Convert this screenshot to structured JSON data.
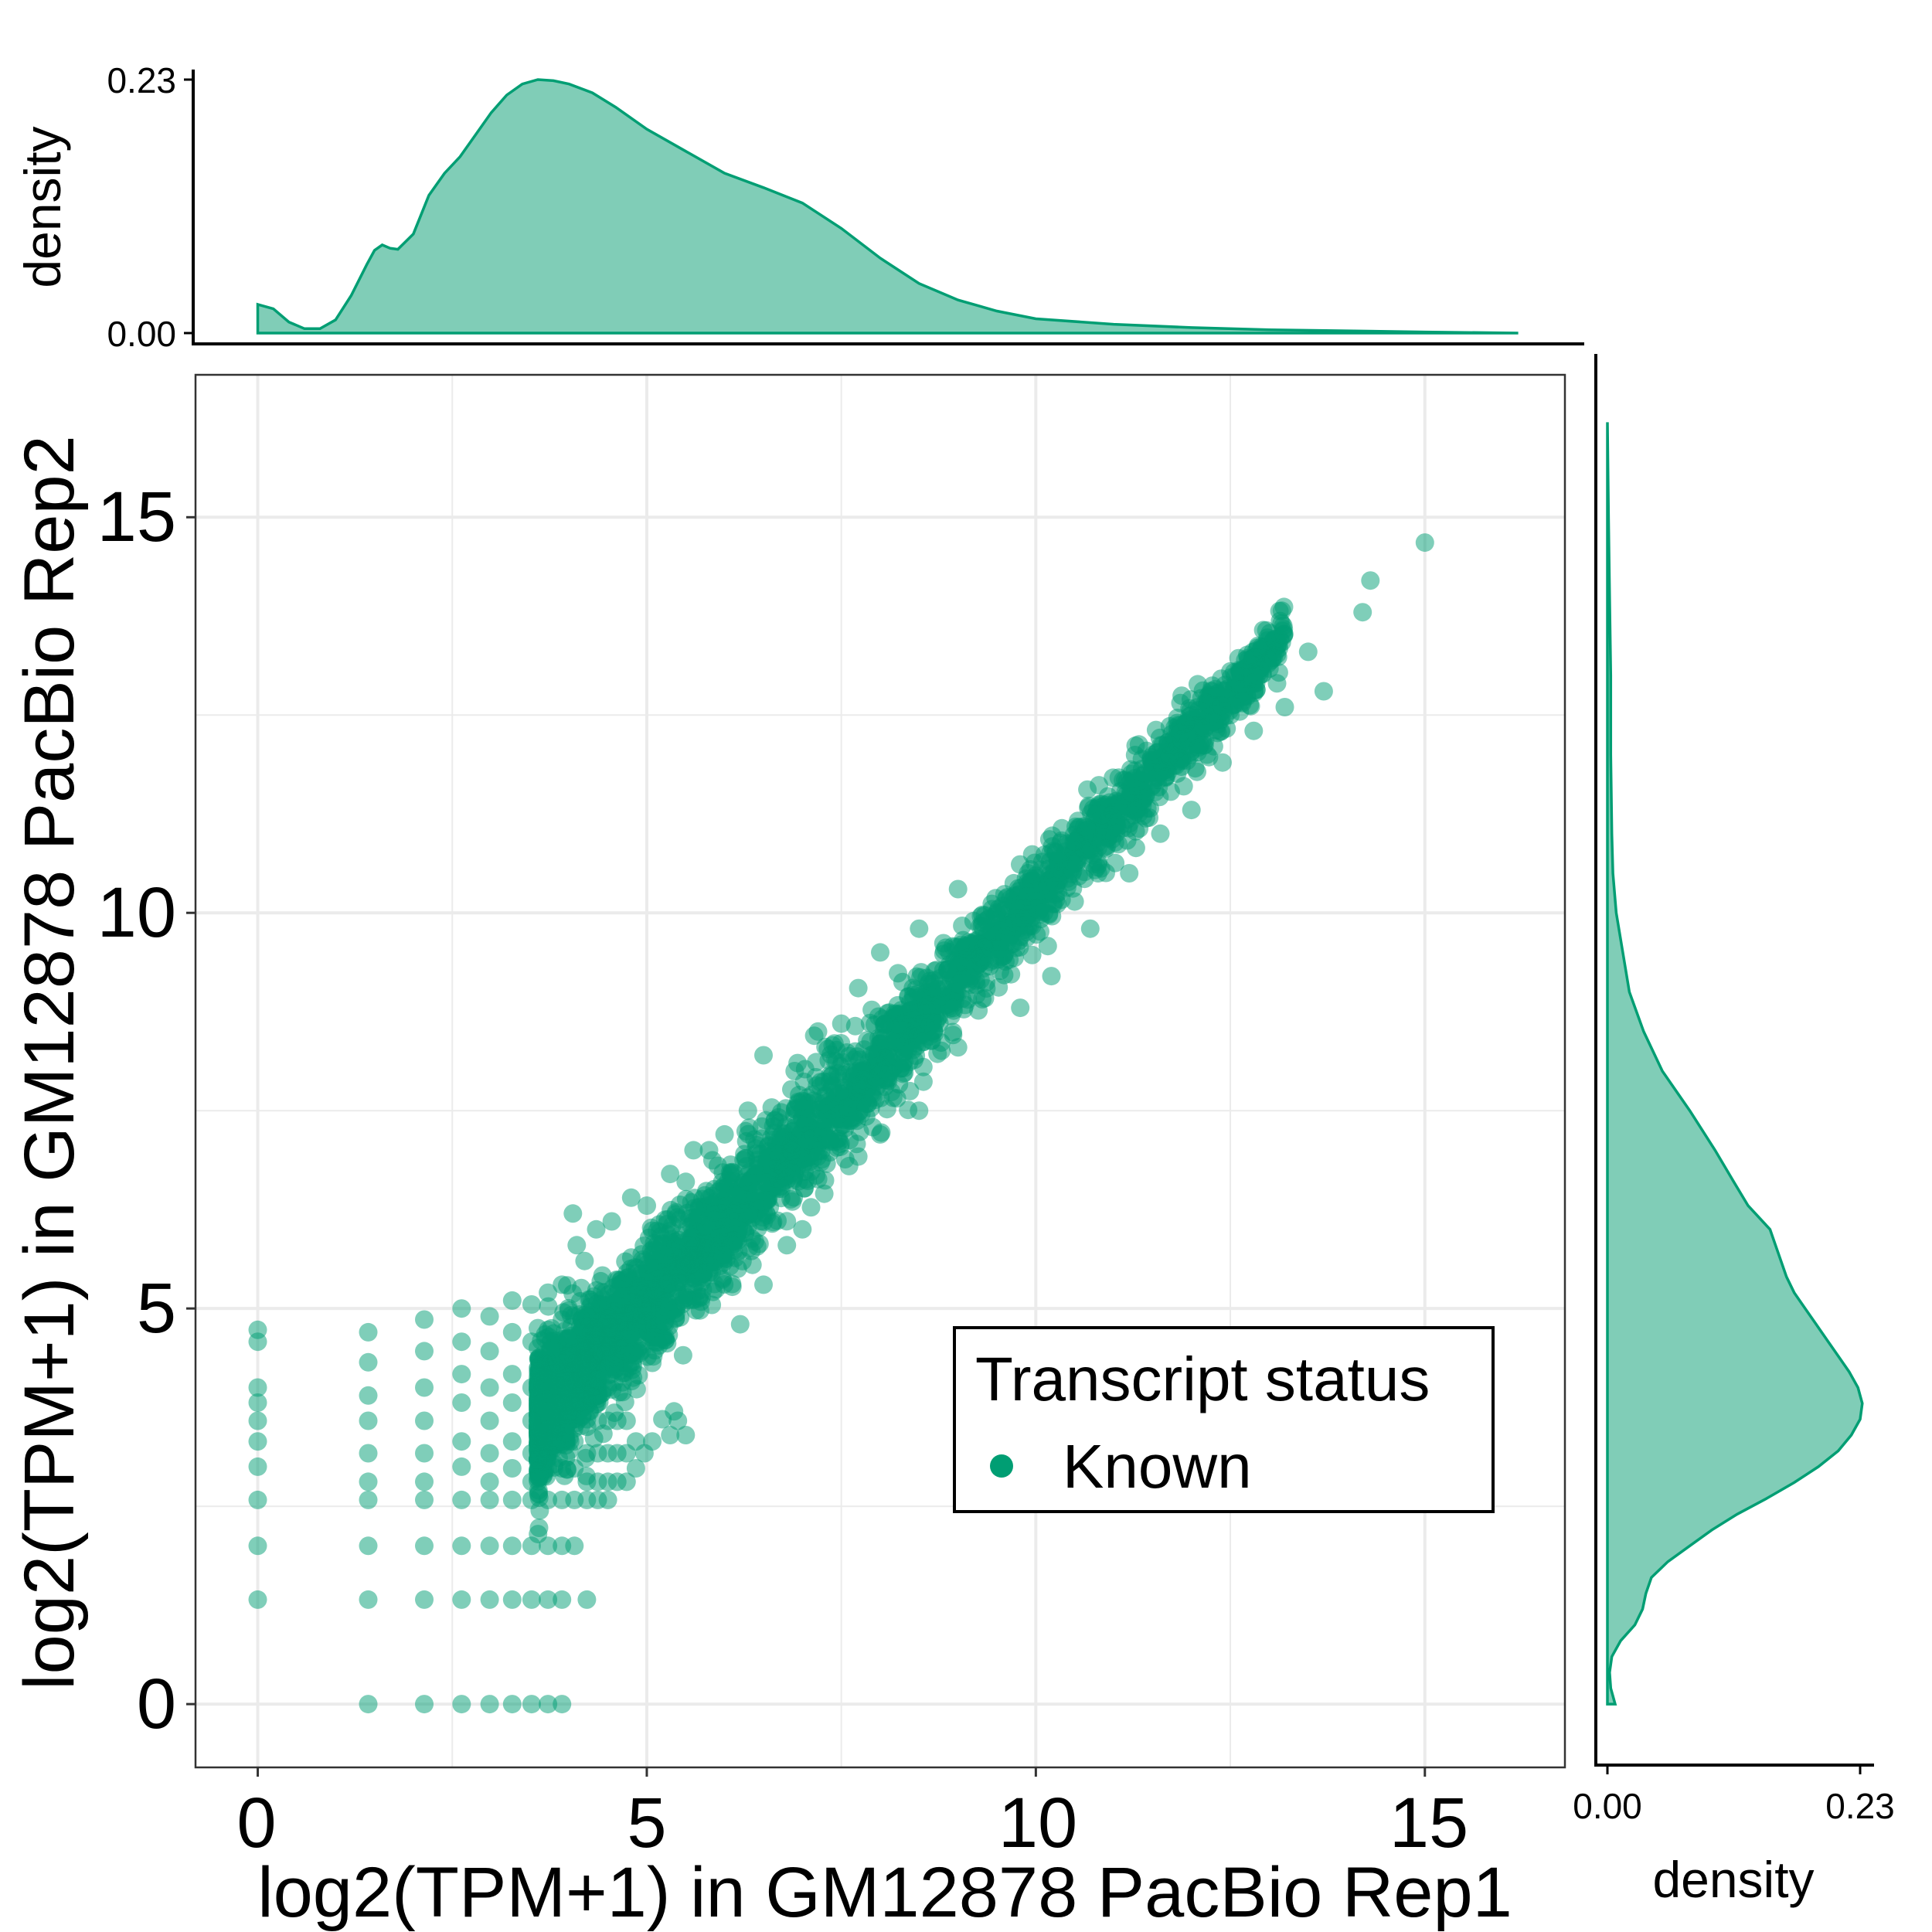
{
  "colors": {
    "point": "#009E73",
    "density_fill": "#80CDB7",
    "density_line": "#009E73",
    "grid": "#EBEBEB",
    "axis": "#000000"
  },
  "chart_data": [
    {
      "type": "scatter",
      "xlabel": "log2(TPM+1) in GM12878 PacBio Rep1",
      "ylabel": "log2(TPM+1) in GM12878 PacBio Rep2",
      "xlim": [
        -0.8,
        16.8
      ],
      "ylim": [
        -0.8,
        16.8
      ],
      "x_ticks": [
        "0",
        "5",
        "10",
        "15"
      ],
      "y_ticks": [
        "0",
        "5",
        "10",
        "15"
      ],
      "grid": true,
      "legend": {
        "title": "Transcript status",
        "position": "bottom-right",
        "entries": [
          "Known"
        ]
      },
      "series": [
        {
          "name": "Known",
          "alpha": 0.5,
          "points": [
            [
              0,
              4.73
            ],
            [
              0,
              4.58
            ],
            [
              0,
              4.0
            ],
            [
              0,
              3.81
            ],
            [
              0,
              3.58
            ],
            [
              0,
              3.32
            ],
            [
              0,
              3.0
            ],
            [
              0,
              2.58
            ],
            [
              0,
              2.0
            ],
            [
              0,
              1.32
            ],
            [
              1.42,
              4.7
            ],
            [
              1.42,
              4.32
            ],
            [
              1.42,
              3.9
            ],
            [
              1.42,
              3.58
            ],
            [
              1.42,
              3.17
            ],
            [
              1.42,
              2.81
            ],
            [
              1.42,
              2.58
            ],
            [
              1.42,
              2.0
            ],
            [
              1.42,
              1.32
            ],
            [
              1.42,
              0
            ],
            [
              2.14,
              4.86
            ],
            [
              2.14,
              4.46
            ],
            [
              2.14,
              4.0
            ],
            [
              2.14,
              3.58
            ],
            [
              2.14,
              3.17
            ],
            [
              2.14,
              2.81
            ],
            [
              2.14,
              2.58
            ],
            [
              2.14,
              2.0
            ],
            [
              2.14,
              1.32
            ],
            [
              2.14,
              0
            ],
            [
              2.62,
              5.0
            ],
            [
              2.62,
              4.58
            ],
            [
              2.62,
              4.17
            ],
            [
              2.62,
              3.81
            ],
            [
              2.62,
              3.32
            ],
            [
              2.62,
              3.0
            ],
            [
              2.62,
              2.58
            ],
            [
              2.62,
              2.0
            ],
            [
              2.62,
              1.32
            ],
            [
              2.62,
              0
            ],
            [
              2.98,
              4.9
            ],
            [
              2.98,
              4.46
            ],
            [
              2.98,
              4.0
            ],
            [
              2.98,
              3.58
            ],
            [
              2.98,
              3.17
            ],
            [
              2.98,
              2.81
            ],
            [
              2.98,
              2.58
            ],
            [
              2.98,
              2.0
            ],
            [
              2.98,
              1.32
            ],
            [
              2.98,
              0
            ],
            [
              3.27,
              5.1
            ],
            [
              3.27,
              4.7
            ],
            [
              3.27,
              4.17
            ],
            [
              3.27,
              3.81
            ],
            [
              3.27,
              3.32
            ],
            [
              3.27,
              2.98
            ],
            [
              3.27,
              2.58
            ],
            [
              3.27,
              2.0
            ],
            [
              3.27,
              1.32
            ],
            [
              3.27,
              0
            ],
            [
              3.52,
              5.05
            ],
            [
              3.52,
              4.58
            ],
            [
              3.52,
              4.0
            ],
            [
              3.52,
              3.58
            ],
            [
              3.52,
              3.17
            ],
            [
              3.52,
              2.81
            ],
            [
              3.52,
              2.58
            ],
            [
              3.52,
              2.0
            ],
            [
              3.52,
              1.32
            ],
            [
              3.52,
              0
            ],
            [
              3.73,
              5.2
            ],
            [
              3.73,
              4.73
            ],
            [
              3.73,
              4.17
            ],
            [
              3.73,
              3.7
            ],
            [
              3.73,
              3.32
            ],
            [
              3.73,
              2.98
            ],
            [
              3.73,
              2.58
            ],
            [
              3.73,
              2.0
            ],
            [
              3.73,
              1.32
            ],
            [
              3.73,
              0
            ],
            [
              3.91,
              5.3
            ],
            [
              3.91,
              4.86
            ],
            [
              3.91,
              4.3
            ],
            [
              3.91,
              3.81
            ],
            [
              3.91,
              3.32
            ],
            [
              3.91,
              2.98
            ],
            [
              3.91,
              2.58
            ],
            [
              3.91,
              2.0
            ],
            [
              3.91,
              1.32
            ],
            [
              3.91,
              0
            ],
            [
              4.07,
              4.9
            ],
            [
              4.07,
              4.3
            ],
            [
              4.07,
              3.81
            ],
            [
              4.07,
              3.32
            ],
            [
              4.07,
              2.98
            ],
            [
              4.07,
              2.58
            ],
            [
              4.07,
              2.0
            ],
            [
              4.23,
              4.9
            ],
            [
              4.23,
              4.2
            ],
            [
              4.23,
              3.6
            ],
            [
              4.23,
              3.17
            ],
            [
              4.23,
              2.81
            ],
            [
              4.23,
              2.58
            ],
            [
              4.23,
              1.32
            ],
            [
              4.37,
              4.1
            ],
            [
              4.37,
              3.58
            ],
            [
              4.37,
              3.17
            ],
            [
              4.37,
              2.81
            ],
            [
              4.37,
              2.58
            ],
            [
              4.5,
              4.0
            ],
            [
              4.5,
              3.58
            ],
            [
              4.5,
              3.17
            ],
            [
              4.5,
              2.81
            ],
            [
              4.5,
              2.58
            ],
            [
              4.62,
              3.58
            ],
            [
              4.62,
              3.17
            ],
            [
              4.62,
              2.81
            ],
            [
              4.74,
              3.58
            ],
            [
              4.74,
              3.17
            ],
            [
              4.74,
              2.81
            ],
            [
              4.86,
              3.32
            ],
            [
              4.86,
              2.98
            ],
            [
              4.97,
              3.17
            ],
            [
              5.07,
              3.32
            ],
            [
              5.2,
              3.6
            ],
            [
              5.3,
              3.4
            ],
            [
              5.35,
              3.7
            ],
            [
              5.4,
              3.58
            ],
            [
              5.5,
              3.4
            ],
            [
              4.05,
              6.2
            ],
            [
              4.1,
              5.8
            ],
            [
              4.2,
              5.6
            ],
            [
              4.35,
              6.0
            ],
            [
              4.55,
              6.1
            ],
            [
              4.7,
              5.3
            ],
            [
              4.8,
              6.4
            ],
            [
              5.0,
              6.3
            ],
            [
              5.3,
              6.7
            ],
            [
              5.5,
              6.6
            ],
            [
              5.6,
              7.0
            ],
            [
              5.8,
              7.0
            ],
            [
              6.0,
              7.2
            ],
            [
              6.3,
              7.5
            ],
            [
              6.5,
              8.2
            ],
            [
              6.9,
              8.0
            ],
            [
              7.2,
              8.5
            ],
            [
              7.5,
              8.6
            ],
            [
              8.0,
              9.5
            ],
            [
              8.5,
              9.8
            ],
            [
              9.0,
              10.3
            ],
            [
              6.2,
              4.8
            ],
            [
              6.5,
              5.3
            ],
            [
              6.8,
              5.8
            ],
            [
              7.0,
              6.0
            ],
            [
              7.6,
              6.8
            ],
            [
              8.0,
              7.2
            ],
            [
              8.5,
              7.5
            ],
            [
              9.0,
              8.3
            ],
            [
              9.8,
              8.8
            ],
            [
              10.2,
              9.2
            ],
            [
              10.7,
              9.8
            ],
            [
              11.2,
              10.5
            ],
            [
              11.6,
              11.0
            ],
            [
              12.0,
              11.3
            ],
            [
              12.4,
              11.9
            ],
            [
              12.8,
              12.3
            ],
            [
              13.1,
              12.9
            ],
            [
              13.5,
              13.3
            ],
            [
              14.2,
              13.8
            ],
            [
              14.3,
              14.2
            ],
            [
              15.0,
              14.68
            ],
            [
              13.7,
              12.8
            ],
            [
              13.2,
              12.6
            ],
            [
              12.5,
              12.5
            ],
            [
              12.2,
              12.0
            ],
            [
              11.9,
              11.6
            ],
            [
              10.8,
              10.5
            ],
            [
              10.5,
              10.9
            ],
            [
              9.9,
              10.5
            ]
          ],
          "trend": {
            "x_start": 3.6,
            "x_end": 13.2,
            "slope": 1.03,
            "intercept": -0.1,
            "spread_sd": [
              0.42,
              0.18
            ],
            "count": 3500
          }
        }
      ]
    },
    {
      "type": "area",
      "role": "top-marginal-density",
      "ylabel": "density",
      "y_ticks": [
        "0.00",
        "0.23"
      ],
      "ylim": [
        0,
        0.23
      ],
      "x": [
        0.0,
        0.2,
        0.4,
        0.6,
        0.8,
        1.0,
        1.2,
        1.4,
        1.5,
        1.6,
        1.7,
        1.8,
        2.0,
        2.2,
        2.4,
        2.6,
        2.8,
        3.0,
        3.2,
        3.4,
        3.6,
        3.8,
        4.0,
        4.3,
        4.6,
        5.0,
        5.5,
        6.0,
        6.5,
        7.0,
        7.5,
        8.0,
        8.5,
        9.0,
        9.5,
        10.0,
        11.0,
        12.0,
        13.0,
        14.0,
        15.0,
        16.2
      ],
      "values": [
        0.026,
        0.022,
        0.01,
        0.004,
        0.004,
        0.012,
        0.034,
        0.062,
        0.075,
        0.08,
        0.077,
        0.076,
        0.09,
        0.125,
        0.145,
        0.16,
        0.18,
        0.2,
        0.216,
        0.226,
        0.23,
        0.229,
        0.226,
        0.218,
        0.205,
        0.185,
        0.165,
        0.145,
        0.132,
        0.118,
        0.095,
        0.068,
        0.045,
        0.03,
        0.02,
        0.013,
        0.008,
        0.005,
        0.003,
        0.002,
        0.001,
        0.0
      ]
    },
    {
      "type": "area",
      "role": "right-marginal-density",
      "xlabel": "density",
      "x_ticks": [
        "0.00",
        "0.23"
      ],
      "xlim": [
        0,
        0.23
      ],
      "y": [
        0.0,
        0.2,
        0.4,
        0.6,
        0.8,
        1.0,
        1.2,
        1.4,
        1.6,
        1.8,
        2.0,
        2.2,
        2.4,
        2.6,
        2.8,
        3.0,
        3.2,
        3.4,
        3.6,
        3.8,
        4.0,
        4.2,
        4.4,
        4.6,
        4.8,
        5.0,
        5.2,
        5.4,
        5.6,
        5.8,
        6.0,
        6.3,
        6.6,
        7.0,
        7.5,
        8.0,
        8.5,
        9.0,
        9.5,
        10.0,
        10.5,
        11.0,
        12.0,
        13.0,
        14.0,
        15.0,
        16.2
      ],
      "values": [
        0.007,
        0.003,
        0.002,
        0.004,
        0.012,
        0.025,
        0.032,
        0.035,
        0.04,
        0.055,
        0.075,
        0.095,
        0.118,
        0.145,
        0.17,
        0.192,
        0.21,
        0.222,
        0.23,
        0.232,
        0.228,
        0.22,
        0.21,
        0.2,
        0.19,
        0.18,
        0.17,
        0.163,
        0.158,
        0.153,
        0.148,
        0.128,
        0.115,
        0.098,
        0.075,
        0.05,
        0.033,
        0.02,
        0.014,
        0.008,
        0.005,
        0.004,
        0.003,
        0.003,
        0.002,
        0.001,
        0.0
      ]
    }
  ]
}
